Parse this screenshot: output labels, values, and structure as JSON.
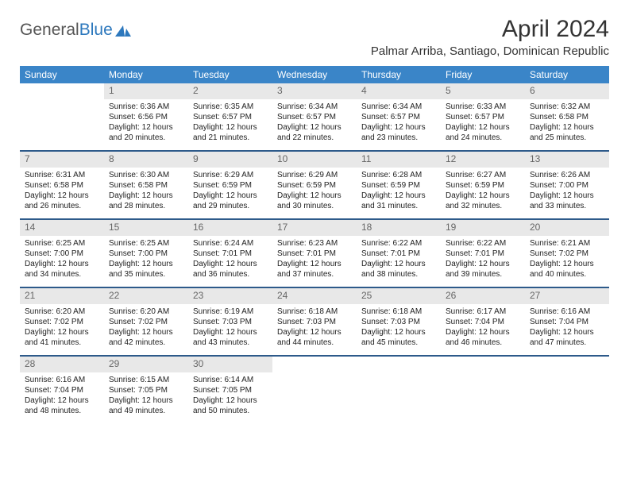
{
  "brand": {
    "name_gray": "General",
    "name_blue": "Blue"
  },
  "title": {
    "month_year": "April 2024",
    "location": "Palmar Arriba, Santiago, Dominican Republic"
  },
  "day_headers": [
    "Sunday",
    "Monday",
    "Tuesday",
    "Wednesday",
    "Thursday",
    "Friday",
    "Saturday"
  ],
  "colors": {
    "header_bg": "#3a85c8",
    "header_text": "#ffffff",
    "week_border": "#2d5a8a",
    "date_bg": "#e8e8e8",
    "date_text": "#666666",
    "body_text": "#222222",
    "logo_gray": "#555555",
    "logo_blue": "#2d78bd"
  },
  "weeks": [
    [
      {
        "date": "",
        "sunrise": "",
        "sunset": "",
        "daylight1": "",
        "daylight2": ""
      },
      {
        "date": "1",
        "sunrise": "Sunrise: 6:36 AM",
        "sunset": "Sunset: 6:56 PM",
        "daylight1": "Daylight: 12 hours",
        "daylight2": "and 20 minutes."
      },
      {
        "date": "2",
        "sunrise": "Sunrise: 6:35 AM",
        "sunset": "Sunset: 6:57 PM",
        "daylight1": "Daylight: 12 hours",
        "daylight2": "and 21 minutes."
      },
      {
        "date": "3",
        "sunrise": "Sunrise: 6:34 AM",
        "sunset": "Sunset: 6:57 PM",
        "daylight1": "Daylight: 12 hours",
        "daylight2": "and 22 minutes."
      },
      {
        "date": "4",
        "sunrise": "Sunrise: 6:34 AM",
        "sunset": "Sunset: 6:57 PM",
        "daylight1": "Daylight: 12 hours",
        "daylight2": "and 23 minutes."
      },
      {
        "date": "5",
        "sunrise": "Sunrise: 6:33 AM",
        "sunset": "Sunset: 6:57 PM",
        "daylight1": "Daylight: 12 hours",
        "daylight2": "and 24 minutes."
      },
      {
        "date": "6",
        "sunrise": "Sunrise: 6:32 AM",
        "sunset": "Sunset: 6:58 PM",
        "daylight1": "Daylight: 12 hours",
        "daylight2": "and 25 minutes."
      }
    ],
    [
      {
        "date": "7",
        "sunrise": "Sunrise: 6:31 AM",
        "sunset": "Sunset: 6:58 PM",
        "daylight1": "Daylight: 12 hours",
        "daylight2": "and 26 minutes."
      },
      {
        "date": "8",
        "sunrise": "Sunrise: 6:30 AM",
        "sunset": "Sunset: 6:58 PM",
        "daylight1": "Daylight: 12 hours",
        "daylight2": "and 28 minutes."
      },
      {
        "date": "9",
        "sunrise": "Sunrise: 6:29 AM",
        "sunset": "Sunset: 6:59 PM",
        "daylight1": "Daylight: 12 hours",
        "daylight2": "and 29 minutes."
      },
      {
        "date": "10",
        "sunrise": "Sunrise: 6:29 AM",
        "sunset": "Sunset: 6:59 PM",
        "daylight1": "Daylight: 12 hours",
        "daylight2": "and 30 minutes."
      },
      {
        "date": "11",
        "sunrise": "Sunrise: 6:28 AM",
        "sunset": "Sunset: 6:59 PM",
        "daylight1": "Daylight: 12 hours",
        "daylight2": "and 31 minutes."
      },
      {
        "date": "12",
        "sunrise": "Sunrise: 6:27 AM",
        "sunset": "Sunset: 6:59 PM",
        "daylight1": "Daylight: 12 hours",
        "daylight2": "and 32 minutes."
      },
      {
        "date": "13",
        "sunrise": "Sunrise: 6:26 AM",
        "sunset": "Sunset: 7:00 PM",
        "daylight1": "Daylight: 12 hours",
        "daylight2": "and 33 minutes."
      }
    ],
    [
      {
        "date": "14",
        "sunrise": "Sunrise: 6:25 AM",
        "sunset": "Sunset: 7:00 PM",
        "daylight1": "Daylight: 12 hours",
        "daylight2": "and 34 minutes."
      },
      {
        "date": "15",
        "sunrise": "Sunrise: 6:25 AM",
        "sunset": "Sunset: 7:00 PM",
        "daylight1": "Daylight: 12 hours",
        "daylight2": "and 35 minutes."
      },
      {
        "date": "16",
        "sunrise": "Sunrise: 6:24 AM",
        "sunset": "Sunset: 7:01 PM",
        "daylight1": "Daylight: 12 hours",
        "daylight2": "and 36 minutes."
      },
      {
        "date": "17",
        "sunrise": "Sunrise: 6:23 AM",
        "sunset": "Sunset: 7:01 PM",
        "daylight1": "Daylight: 12 hours",
        "daylight2": "and 37 minutes."
      },
      {
        "date": "18",
        "sunrise": "Sunrise: 6:22 AM",
        "sunset": "Sunset: 7:01 PM",
        "daylight1": "Daylight: 12 hours",
        "daylight2": "and 38 minutes."
      },
      {
        "date": "19",
        "sunrise": "Sunrise: 6:22 AM",
        "sunset": "Sunset: 7:01 PM",
        "daylight1": "Daylight: 12 hours",
        "daylight2": "and 39 minutes."
      },
      {
        "date": "20",
        "sunrise": "Sunrise: 6:21 AM",
        "sunset": "Sunset: 7:02 PM",
        "daylight1": "Daylight: 12 hours",
        "daylight2": "and 40 minutes."
      }
    ],
    [
      {
        "date": "21",
        "sunrise": "Sunrise: 6:20 AM",
        "sunset": "Sunset: 7:02 PM",
        "daylight1": "Daylight: 12 hours",
        "daylight2": "and 41 minutes."
      },
      {
        "date": "22",
        "sunrise": "Sunrise: 6:20 AM",
        "sunset": "Sunset: 7:02 PM",
        "daylight1": "Daylight: 12 hours",
        "daylight2": "and 42 minutes."
      },
      {
        "date": "23",
        "sunrise": "Sunrise: 6:19 AM",
        "sunset": "Sunset: 7:03 PM",
        "daylight1": "Daylight: 12 hours",
        "daylight2": "and 43 minutes."
      },
      {
        "date": "24",
        "sunrise": "Sunrise: 6:18 AM",
        "sunset": "Sunset: 7:03 PM",
        "daylight1": "Daylight: 12 hours",
        "daylight2": "and 44 minutes."
      },
      {
        "date": "25",
        "sunrise": "Sunrise: 6:18 AM",
        "sunset": "Sunset: 7:03 PM",
        "daylight1": "Daylight: 12 hours",
        "daylight2": "and 45 minutes."
      },
      {
        "date": "26",
        "sunrise": "Sunrise: 6:17 AM",
        "sunset": "Sunset: 7:04 PM",
        "daylight1": "Daylight: 12 hours",
        "daylight2": "and 46 minutes."
      },
      {
        "date": "27",
        "sunrise": "Sunrise: 6:16 AM",
        "sunset": "Sunset: 7:04 PM",
        "daylight1": "Daylight: 12 hours",
        "daylight2": "and 47 minutes."
      }
    ],
    [
      {
        "date": "28",
        "sunrise": "Sunrise: 6:16 AM",
        "sunset": "Sunset: 7:04 PM",
        "daylight1": "Daylight: 12 hours",
        "daylight2": "and 48 minutes."
      },
      {
        "date": "29",
        "sunrise": "Sunrise: 6:15 AM",
        "sunset": "Sunset: 7:05 PM",
        "daylight1": "Daylight: 12 hours",
        "daylight2": "and 49 minutes."
      },
      {
        "date": "30",
        "sunrise": "Sunrise: 6:14 AM",
        "sunset": "Sunset: 7:05 PM",
        "daylight1": "Daylight: 12 hours",
        "daylight2": "and 50 minutes."
      },
      {
        "date": "",
        "sunrise": "",
        "sunset": "",
        "daylight1": "",
        "daylight2": ""
      },
      {
        "date": "",
        "sunrise": "",
        "sunset": "",
        "daylight1": "",
        "daylight2": ""
      },
      {
        "date": "",
        "sunrise": "",
        "sunset": "",
        "daylight1": "",
        "daylight2": ""
      },
      {
        "date": "",
        "sunrise": "",
        "sunset": "",
        "daylight1": "",
        "daylight2": ""
      }
    ]
  ]
}
